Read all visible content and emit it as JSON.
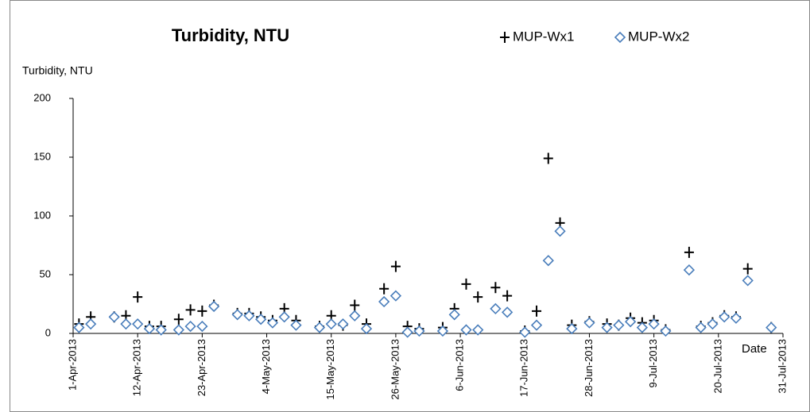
{
  "chart_data": {
    "type": "scatter",
    "title": "Turbidity, NTU",
    "y_label": "Turbidity, NTU",
    "x_label": "Date",
    "x": [
      "2013-04-02",
      "2013-04-04",
      "2013-04-08",
      "2013-04-10",
      "2013-04-12",
      "2013-04-14",
      "2013-04-16",
      "2013-04-19",
      "2013-04-21",
      "2013-04-23",
      "2013-04-25",
      "2013-04-29",
      "2013-05-01",
      "2013-05-03",
      "2013-05-05",
      "2013-05-07",
      "2013-05-09",
      "2013-05-13",
      "2013-05-15",
      "2013-05-17",
      "2013-05-19",
      "2013-05-21",
      "2013-05-24",
      "2013-05-26",
      "2013-05-28",
      "2013-05-30",
      "2013-06-03",
      "2013-06-05",
      "2013-06-07",
      "2013-06-09",
      "2013-06-12",
      "2013-06-14",
      "2013-06-17",
      "2013-06-19",
      "2013-06-21",
      "2013-06-23",
      "2013-06-25",
      "2013-06-28",
      "2013-07-01",
      "2013-07-03",
      "2013-07-05",
      "2013-07-07",
      "2013-07-09",
      "2013-07-11",
      "2013-07-15",
      "2013-07-17",
      "2013-07-19",
      "2013-07-21",
      "2013-07-23",
      "2013-07-25",
      "2013-07-29"
    ],
    "series": [
      {
        "name": "MUP-Wx1",
        "color": "#000000",
        "marker": "plus",
        "values": [
          8,
          14,
          14,
          15,
          31,
          6,
          6,
          12,
          20,
          19,
          24,
          17,
          17,
          14,
          11,
          21,
          11,
          6,
          15,
          7,
          24,
          8,
          38,
          57,
          6,
          4,
          5,
          21,
          42,
          31,
          39,
          32,
          2,
          19,
          149,
          94,
          7,
          10,
          8,
          7,
          13,
          9,
          11,
          3,
          69,
          6,
          9,
          15,
          14,
          55,
          5
        ]
      },
      {
        "name": "MUP-Wx2",
        "color": "#4a7ebb",
        "marker": "diamond",
        "values": [
          5,
          8,
          14,
          8,
          8,
          4,
          3,
          3,
          6,
          6,
          23,
          16,
          15,
          12,
          9,
          14,
          7,
          5,
          8,
          8,
          15,
          4,
          27,
          32,
          1,
          2,
          2,
          16,
          3,
          3,
          21,
          18,
          1,
          7,
          62,
          87,
          4,
          9,
          5,
          7,
          10,
          5,
          8,
          2,
          54,
          5,
          8,
          14,
          13,
          45,
          5
        ]
      }
    ],
    "xlim": [
      "2013-04-01",
      "2013-07-31"
    ],
    "xticks": [
      {
        "value": "2013-04-01",
        "label": "1-Apr-2013"
      },
      {
        "value": "2013-04-12",
        "label": "12-Apr-2013"
      },
      {
        "value": "2013-04-23",
        "label": "23-Apr-2013"
      },
      {
        "value": "2013-05-04",
        "label": "4-May-2013"
      },
      {
        "value": "2013-05-15",
        "label": "15-May-2013"
      },
      {
        "value": "2013-05-26",
        "label": "26-May-2013"
      },
      {
        "value": "2013-06-06",
        "label": "6-Jun-2013"
      },
      {
        "value": "2013-06-17",
        "label": "17-Jun-2013"
      },
      {
        "value": "2013-06-28",
        "label": "28-Jun-2013"
      },
      {
        "value": "2013-07-09",
        "label": "9-Jul-2013"
      },
      {
        "value": "2013-07-20",
        "label": "20-Jul-2013"
      },
      {
        "value": "2013-07-31",
        "label": "31-Jul-2013"
      }
    ],
    "ylim": [
      0,
      200
    ],
    "yticks": [
      0,
      50,
      100,
      150,
      200
    ],
    "grid": false
  }
}
